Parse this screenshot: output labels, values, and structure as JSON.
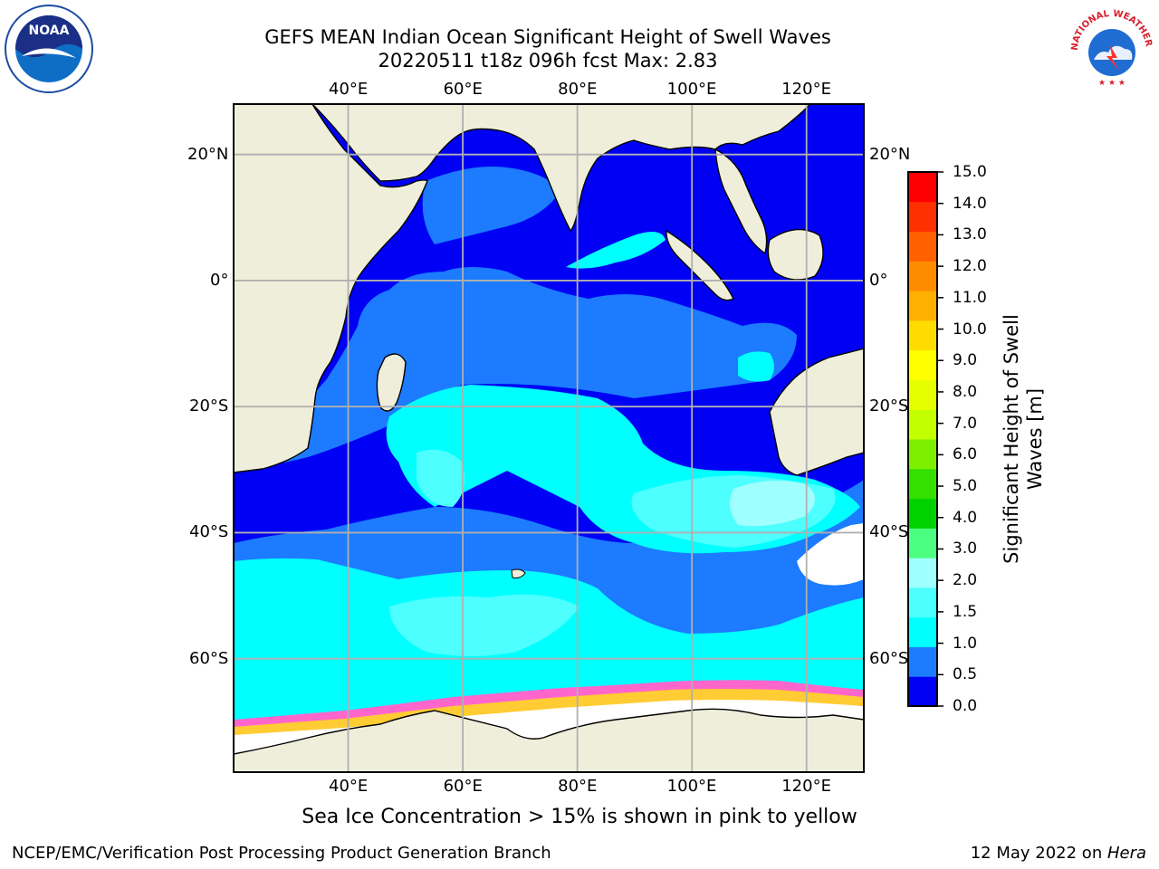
{
  "title": {
    "line1": "GEFS MEAN Indian Ocean Significant Height of Swell Waves",
    "line2": "20220511 t18z 096h fcst   Max: 2.83"
  },
  "map": {
    "lon_range": [
      20,
      130
    ],
    "lat_range": [
      -78,
      28
    ],
    "lon_ticks": [
      "40°E",
      "60°E",
      "80°E",
      "100°E",
      "120°E"
    ],
    "lon_tick_values": [
      40,
      60,
      80,
      100,
      120
    ],
    "lat_ticks": [
      "20°N",
      "0°",
      "20°S",
      "40°S",
      "60°S"
    ],
    "lat_tick_values": [
      20,
      0,
      -20,
      -40,
      -60
    ],
    "grid": true,
    "land_color": "#efeedb",
    "ice_color": "#ffffff",
    "grid_color": "#b0b0b0"
  },
  "colorbar": {
    "title": "Significant Height of Swell Waves [m]",
    "labels": [
      "0.0",
      "0.5",
      "1.0",
      "1.5",
      "2.0",
      "3.0",
      "4.0",
      "5.0",
      "6.0",
      "7.0",
      "8.0",
      "9.0",
      "10.0",
      "11.0",
      "12.0",
      "13.0",
      "14.0",
      "15.0"
    ],
    "colors": [
      "#0000f5",
      "#1c7bff",
      "#00ffff",
      "#4dffff",
      "#a0ffff",
      "#4cff80",
      "#00d200",
      "#33e000",
      "#7cf000",
      "#c3ff00",
      "#e5ff00",
      "#ffff00",
      "#ffdc00",
      "#ffb000",
      "#ff8c00",
      "#ff6000",
      "#ff3000",
      "#ff0000"
    ]
  },
  "subtitle": "Sea Ice Concentration > 15% is shown in pink to yellow",
  "footer": {
    "left": "NCEP/EMC/Verification Post Processing Product Generation Branch",
    "date": "12 May 2022 on ",
    "machine": "Hera"
  },
  "logos": {
    "noaa": "NOAA",
    "nws_ring": "NATIONAL WEATHER SERVICE"
  }
}
